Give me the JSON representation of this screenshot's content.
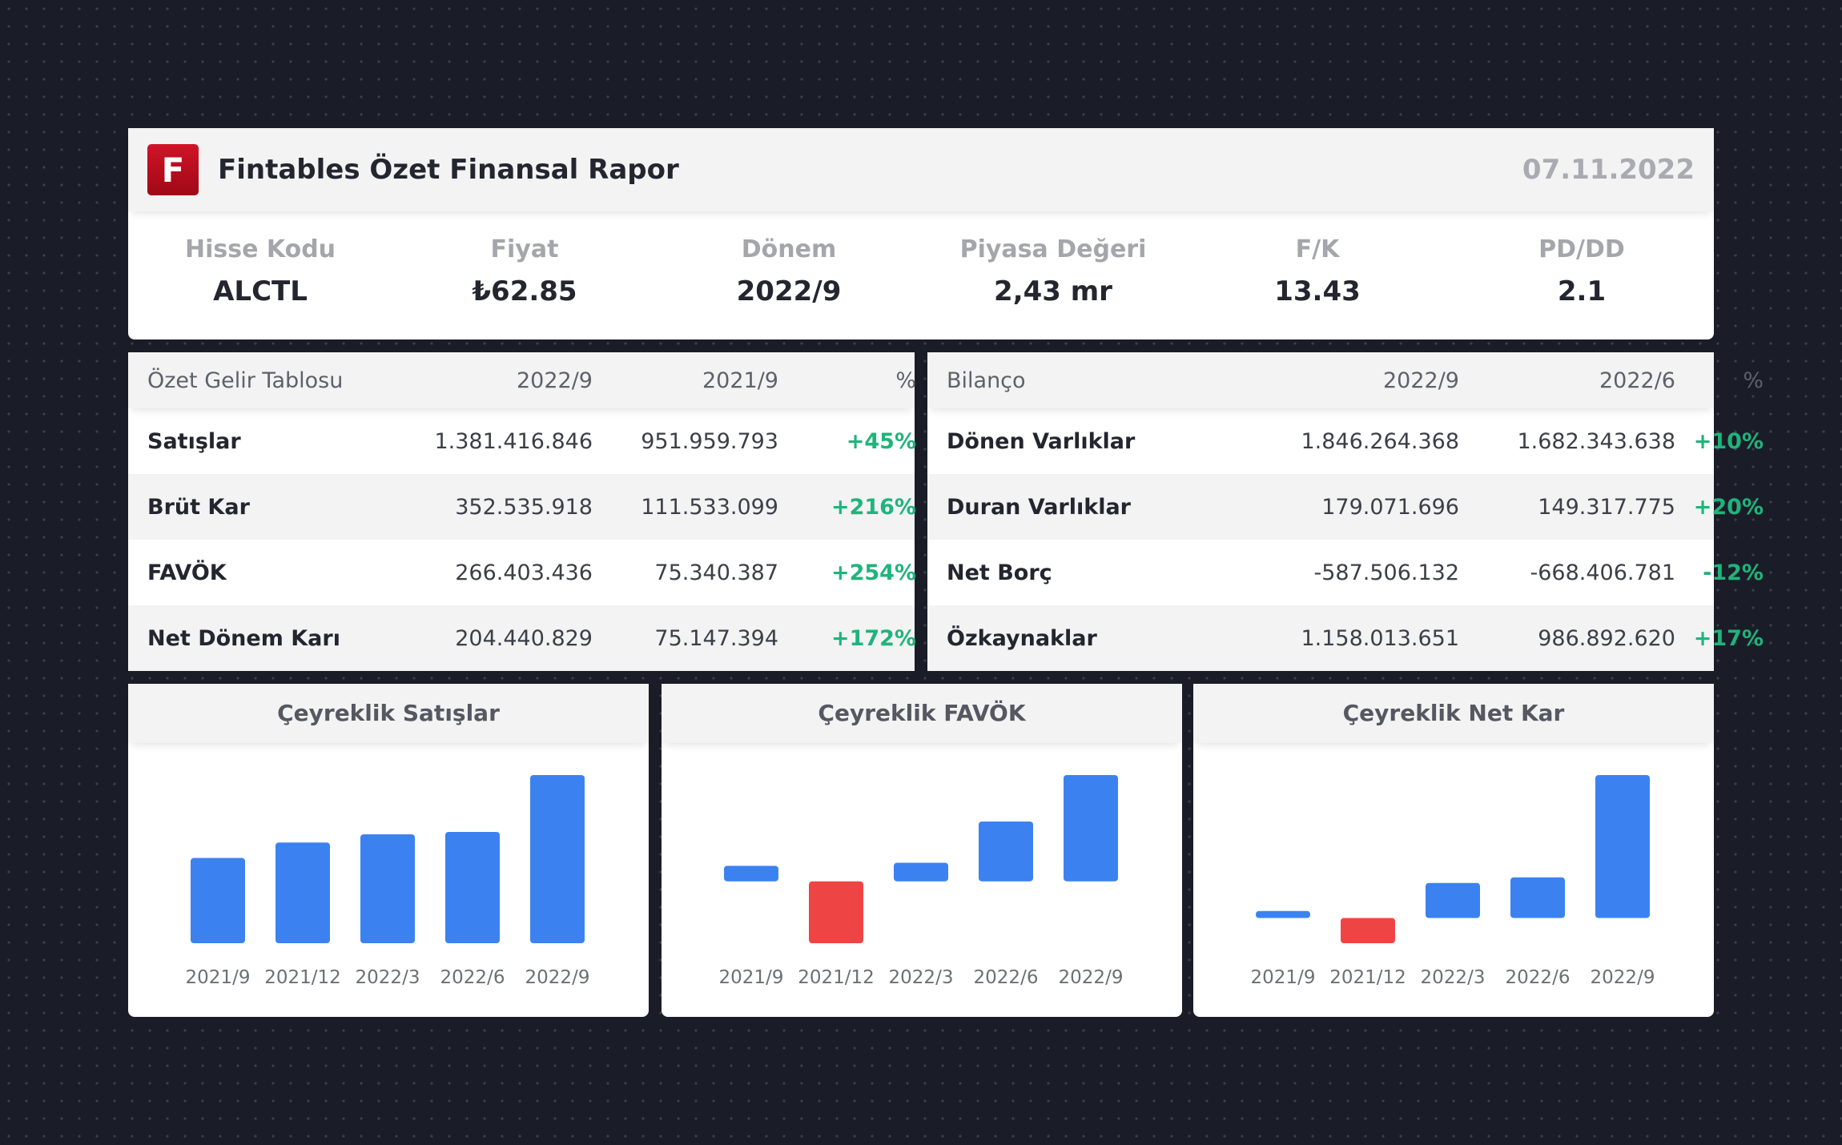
{
  "header": {
    "logo_letter": "F",
    "title": "Fintables Özet Finansal Rapor",
    "date": "07.11.2022"
  },
  "metrics": [
    {
      "label": "Hisse Kodu",
      "value": "ALCTL"
    },
    {
      "label": "Fiyat",
      "value": "₺62.85"
    },
    {
      "label": "Dönem",
      "value": "2022/9"
    },
    {
      "label": "Piyasa Değeri",
      "value": "2,43 mr"
    },
    {
      "label": "F/K",
      "value": "13.43"
    },
    {
      "label": "PD/DD",
      "value": "2.1"
    }
  ],
  "income_table": {
    "headers": [
      "Özet Gelir Tablosu",
      "2022/9",
      "2021/9",
      "%"
    ],
    "rows": [
      {
        "name": "Satışlar",
        "v1": "1.381.416.846",
        "v2": "951.959.793",
        "pct": "+45%"
      },
      {
        "name": "Brüt Kar",
        "v1": "352.535.918",
        "v2": "111.533.099",
        "pct": "+216%"
      },
      {
        "name": "FAVÖK",
        "v1": "266.403.436",
        "v2": "75.340.387",
        "pct": "+254%"
      },
      {
        "name": "Net Dönem Karı",
        "v1": "204.440.829",
        "v2": "75.147.394",
        "pct": "+172%"
      }
    ]
  },
  "balance_table": {
    "headers": [
      "Bilanço",
      "2022/9",
      "2022/6",
      "%"
    ],
    "rows": [
      {
        "name": "Dönen Varlıklar",
        "v1": "1.846.264.368",
        "v2": "1.682.343.638",
        "pct": "+10%"
      },
      {
        "name": "Duran Varlıklar",
        "v1": "179.071.696",
        "v2": "149.317.775",
        "pct": "+20%"
      },
      {
        "name": "Net Borç",
        "v1": "-587.506.132",
        "v2": "-668.406.781",
        "pct": "-12%"
      },
      {
        "name": "Özkaynaklar",
        "v1": "1.158.013.651",
        "v2": "986.892.620",
        "pct": "+17%"
      }
    ]
  },
  "colors": {
    "positive_bar": "#3b82f0",
    "negative_bar": "#ef4444",
    "pct_text": "#1fb47b"
  },
  "chart_data": [
    {
      "type": "bar",
      "title": "Çeyreklik Satışlar",
      "categories": [
        "2021/9",
        "2021/12",
        "2022/3",
        "2022/6",
        "2022/9"
      ],
      "values": [
        360,
        425,
        460,
        470,
        710
      ],
      "ylim": [
        0,
        710
      ],
      "xlabel": "",
      "ylabel": ""
    },
    {
      "type": "bar",
      "title": "Çeyreklik FAVÖK",
      "categories": [
        "2021/9",
        "2021/12",
        "2022/3",
        "2022/6",
        "2022/9"
      ],
      "values": [
        15,
        -60,
        18,
        58,
        103
      ],
      "ylim": [
        -60,
        103
      ],
      "xlabel": "",
      "ylabel": ""
    },
    {
      "type": "bar",
      "title": "Çeyreklik Net Kar",
      "categories": [
        "2021/9",
        "2021/12",
        "2022/3",
        "2022/6",
        "2022/9"
      ],
      "values": [
        5,
        -18,
        25,
        29,
        102
      ],
      "ylim": [
        -18,
        102
      ],
      "xlabel": "",
      "ylabel": ""
    }
  ]
}
